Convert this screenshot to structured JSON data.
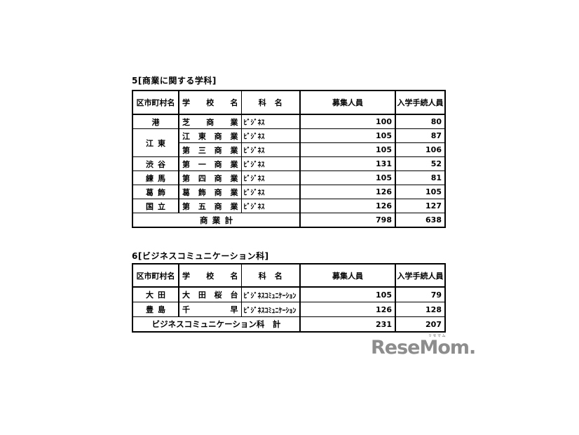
{
  "section5": {
    "title": "5[商業に関する学科]",
    "table": {
      "headers": {
        "ward": "区市町村名",
        "school": "学校名",
        "dept": "科名",
        "recruit": "募集人員",
        "enrolled": "入学手続人員"
      },
      "rows": [
        {
          "ward": "港",
          "school": "芝商業",
          "dept": "ﾋﾞｼﾞﾈｽ",
          "recruit": "100",
          "enrolled": "80"
        },
        {
          "ward": "江東",
          "school": "江東商業",
          "dept": "ﾋﾞｼﾞﾈｽ",
          "recruit": "105",
          "enrolled": "87"
        },
        {
          "ward": "",
          "school": "第三商業",
          "dept": "ﾋﾞｼﾞﾈｽ",
          "recruit": "105",
          "enrolled": "106"
        },
        {
          "ward": "渋谷",
          "school": "第一商業",
          "dept": "ﾋﾞｼﾞﾈｽ",
          "recruit": "131",
          "enrolled": "52"
        },
        {
          "ward": "練馬",
          "school": "第四商業",
          "dept": "ﾋﾞｼﾞﾈｽ",
          "recruit": "105",
          "enrolled": "81"
        },
        {
          "ward": "葛飾",
          "school": "葛飾商業",
          "dept": "ﾋﾞｼﾞﾈｽ",
          "recruit": "126",
          "enrolled": "105"
        },
        {
          "ward": "国立",
          "school": "第五商業",
          "dept": "ﾋﾞｼﾞﾈｽ",
          "recruit": "126",
          "enrolled": "127"
        }
      ],
      "total": {
        "label": "商業計",
        "recruit": "798",
        "enrolled": "638"
      }
    }
  },
  "section6": {
    "title": "6[ビジネスコミュニケーション科]",
    "table": {
      "headers": {
        "ward": "区市町村名",
        "school": "学校名",
        "dept": "科名",
        "recruit": "募集人員",
        "enrolled": "入学手続人員"
      },
      "rows": [
        {
          "ward": "大田",
          "school": "大田桜台",
          "dept": "ﾋﾞｼﾞﾈｽｺﾐｭﾆｹｰｼｮﾝ",
          "recruit": "105",
          "enrolled": "79"
        },
        {
          "ward": "豊島",
          "school": "千早",
          "dept": "ﾋﾞｼﾞﾈｽｺﾐｭﾆｹｰｼｮﾝ",
          "recruit": "126",
          "enrolled": "128"
        }
      ],
      "total": {
        "label": "ビジネスコミュニケーション科　計",
        "recruit": "231",
        "enrolled": "207"
      }
    }
  },
  "logo": {
    "kana": "リセマム",
    "text": "ReseMom."
  }
}
